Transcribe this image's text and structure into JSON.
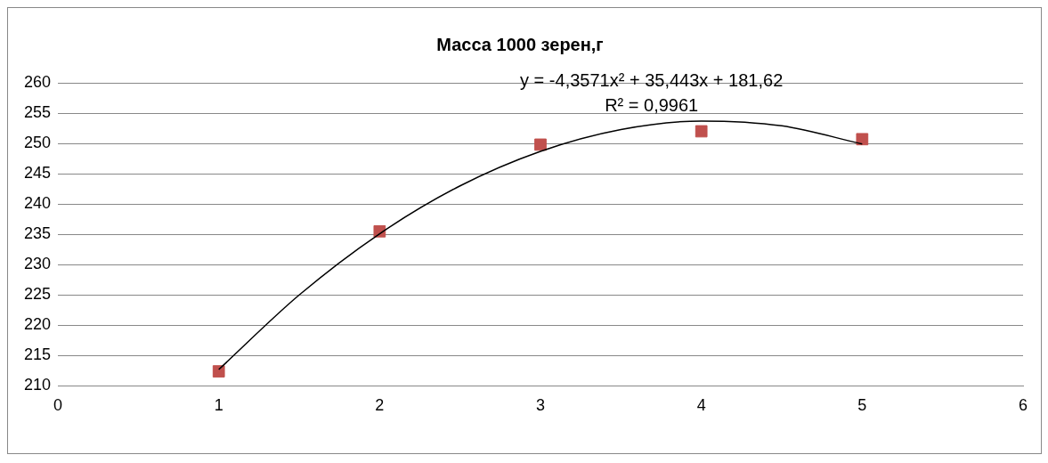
{
  "chart_data": {
    "type": "scatter",
    "title": "Масса 1000 зерен,г",
    "x": [
      1,
      2,
      3,
      4,
      5
    ],
    "series": [
      {
        "type": "scatter",
        "color": "#c0504d",
        "values": [
          212.4,
          235.5,
          249.8,
          252.0,
          250.7
        ],
        "marker": "square"
      },
      {
        "type": "line",
        "color": "#000000",
        "x": [
          1,
          1.5,
          2,
          2.5,
          3,
          3.5,
          4,
          4.5,
          5
        ],
        "values": [
          212.7,
          225.0,
          235.1,
          243.0,
          248.7,
          252.3,
          253.7,
          252.9,
          249.9
        ],
        "marker": "none"
      }
    ],
    "xlim": [
      0,
      6
    ],
    "xticks": [
      0,
      1,
      2,
      3,
      4,
      5,
      6
    ],
    "ylim": [
      210,
      260
    ],
    "yticks": [
      210,
      215,
      220,
      225,
      230,
      235,
      240,
      245,
      250,
      255,
      260
    ],
    "grid": "y",
    "legend": false,
    "annotations": [
      "y = -4,3571x² + 35,443x + 181,62",
      "R² = 0,9961"
    ]
  }
}
